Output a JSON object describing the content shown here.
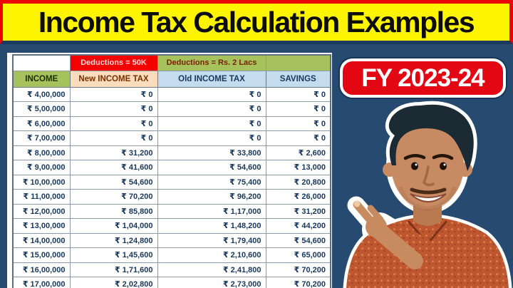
{
  "banner": {
    "title": "Income Tax Calculation Examples"
  },
  "badge": {
    "label": "FY 2023-24"
  },
  "table": {
    "deductions_new_label": "Deductions = 50K",
    "deductions_old_label": "Deductions = Rs. 2 Lacs",
    "columns": [
      "INCOME",
      "New INCOME TAX",
      "Old INCOME TAX",
      "SAVINGS"
    ],
    "rows": [
      [
        "₹ 4,00,000",
        "₹ 0",
        "₹ 0",
        "₹ 0"
      ],
      [
        "₹ 5,00,000",
        "₹ 0",
        "₹ 0",
        "₹ 0"
      ],
      [
        "₹ 6,00,000",
        "₹ 0",
        "₹ 0",
        "₹ 0"
      ],
      [
        "₹ 7,00,000",
        "₹ 0",
        "₹ 0",
        "₹ 0"
      ],
      [
        "₹ 8,00,000",
        "₹ 31,200",
        "₹ 33,800",
        "₹ 2,600"
      ],
      [
        "₹ 9,00,000",
        "₹ 41,600",
        "₹ 54,600",
        "₹ 13,000"
      ],
      [
        "₹ 10,00,000",
        "₹ 54,600",
        "₹ 75,400",
        "₹ 20,800"
      ],
      [
        "₹ 11,00,000",
        "₹ 70,200",
        "₹ 96,200",
        "₹ 26,000"
      ],
      [
        "₹ 12,00,000",
        "₹ 85,800",
        "₹ 1,17,000",
        "₹ 31,200"
      ],
      [
        "₹ 13,00,000",
        "₹ 1,04,000",
        "₹ 1,48,200",
        "₹ 44,200"
      ],
      [
        "₹ 14,00,000",
        "₹ 1,24,800",
        "₹ 1,79,400",
        "₹ 54,600"
      ],
      [
        "₹ 15,00,000",
        "₹ 1,45,600",
        "₹ 2,10,600",
        "₹ 65,000"
      ],
      [
        "₹ 16,00,000",
        "₹ 1,71,600",
        "₹ 2,41,800",
        "₹ 70,200"
      ],
      [
        "₹ 17,00,000",
        "₹ 2,02,800",
        "₹ 2,73,000",
        "₹ 70,200"
      ]
    ]
  },
  "person": {
    "name": "presenter-pointing-at-table"
  },
  "colors": {
    "banner_bg": "#FDF400",
    "banner_border": "#EC0000",
    "page_bg": "#264A70",
    "badge_bg": "#E30613",
    "header_green": "#A6C25D",
    "header_red": "#F40000",
    "header_peach": "#FBDCBC",
    "header_blue": "#C5DCEF",
    "cell_text": "#17375E"
  }
}
